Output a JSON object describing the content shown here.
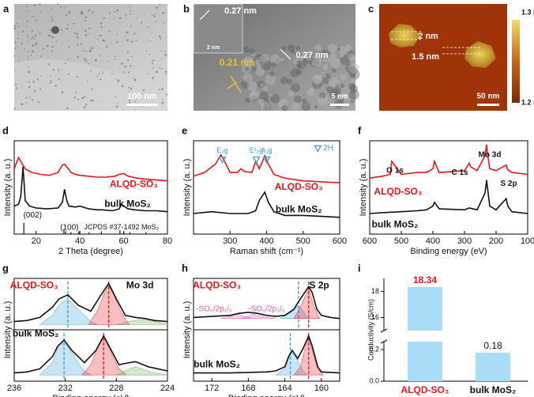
{
  "images": [
    {
      "label": "a",
      "texts": [
        "100 nm"
      ]
    },
    {
      "label": "b",
      "texts": [
        "0.27 nm",
        "2 nm",
        "0.21 nm",
        "0.27 nm",
        "5 nm"
      ]
    },
    {
      "label": "c",
      "texts": [
        "2 nm",
        "1.5 nm",
        "50 nm",
        "1.3 nm",
        "1.2 nm"
      ]
    }
  ],
  "chart_data": [
    {
      "type": "line",
      "label": "d",
      "xlabel": "2 Theta (degree)",
      "ylabel": "Intensity (a. u.)",
      "xlim": [
        10,
        80
      ],
      "xticks": [
        20,
        40,
        60,
        80
      ],
      "ylim": [
        0,
        100
      ],
      "series": [
        {
          "name": "ALQD-SO₃",
          "color": "#e8161b",
          "x": [
            10,
            12,
            13,
            15,
            18,
            22,
            26,
            30,
            32,
            33,
            34,
            36,
            38,
            40,
            44,
            48,
            52,
            56,
            58,
            60,
            62,
            66,
            70,
            75,
            80
          ],
          "values": [
            70,
            82,
            78,
            70,
            66,
            64,
            63,
            66,
            74,
            75,
            72,
            66,
            64,
            63,
            62,
            61,
            61,
            62,
            64,
            65,
            62,
            60,
            59,
            58,
            57
          ]
        },
        {
          "name": "bulk MoS₂",
          "color": "#111111",
          "x": [
            10,
            12,
            13,
            14,
            14.5,
            15,
            17,
            20,
            25,
            30,
            32,
            33,
            34,
            35,
            38,
            40,
            44,
            48,
            50,
            55,
            58,
            59,
            60,
            62,
            65,
            70,
            75,
            80
          ],
          "values": [
            30,
            32,
            40,
            72,
            55,
            36,
            30,
            28,
            27,
            28,
            34,
            48,
            36,
            30,
            29,
            30,
            27,
            26,
            26,
            25,
            27,
            32,
            30,
            27,
            26,
            25,
            25,
            24
          ]
        }
      ],
      "annotations": [
        "(002)",
        "(100)"
      ],
      "reference": {
        "label": "JCPDS #37-1492 MoS₂",
        "color": "#111111",
        "x": [
          14.4,
          32.7,
          33.5,
          35.9,
          39.5,
          44.2,
          49.8,
          58.3,
          60.1,
          62.8,
          70.1
        ],
        "values": [
          12,
          5,
          3,
          2,
          3,
          2,
          3,
          4,
          2,
          2,
          2
        ]
      }
    },
    {
      "type": "line",
      "label": "e",
      "xlabel": "Raman shift (cm⁻¹)",
      "ylabel": "Intensity (a. u.)",
      "xlim": [
        200,
        600
      ],
      "xticks": [
        300,
        400,
        500,
        600
      ],
      "ylim": [
        0,
        100
      ],
      "series": [
        {
          "name": "ALQD-SO₃",
          "color": "#e8161b",
          "x": [
            200,
            230,
            260,
            275,
            285,
            300,
            320,
            330,
            340,
            360,
            370,
            380,
            395,
            405,
            420,
            450,
            500,
            550,
            600
          ],
          "values": [
            62,
            66,
            75,
            85,
            78,
            66,
            66,
            70,
            67,
            66,
            78,
            70,
            84,
            75,
            64,
            60,
            57,
            56,
            55
          ]
        },
        {
          "name": "bulk MoS₂",
          "color": "#111111",
          "x": [
            200,
            250,
            300,
            350,
            370,
            380,
            395,
            405,
            420,
            450,
            500,
            550,
            600
          ],
          "values": [
            22,
            24,
            22,
            22,
            25,
            36,
            45,
            34,
            24,
            20,
            20,
            19,
            18
          ]
        }
      ],
      "markers": {
        "x": [
          279,
          372,
          400
        ],
        "labels": [
          "E₂g",
          "E¹₂g",
          "A₁g"
        ],
        "color": "#3aa0d8"
      },
      "legend": "2H"
    },
    {
      "type": "line",
      "label": "f",
      "xlabel": "Binding energy (eV)",
      "ylabel": "Intensity (a. u.)",
      "xlim": [
        600,
        100
      ],
      "xticks": [
        600,
        500,
        400,
        300,
        200,
        100
      ],
      "ylim": [
        0,
        100
      ],
      "series": [
        {
          "name": "ALQD-SO₃",
          "color": "#e8161b",
          "x": [
            600,
            560,
            535,
            530,
            500,
            450,
            420,
            400,
            395,
            380,
            300,
            285,
            280,
            260,
            235,
            230,
            228,
            220,
            200,
            168,
            163,
            150,
            100
          ],
          "values": [
            60,
            62,
            64,
            78,
            64,
            66,
            66,
            70,
            78,
            66,
            68,
            76,
            72,
            68,
            84,
            96,
            88,
            70,
            68,
            74,
            69,
            66,
            64
          ]
        },
        {
          "name": "bulk MoS₂",
          "color": "#111111",
          "x": [
            600,
            560,
            500,
            450,
            420,
            400,
            395,
            380,
            300,
            285,
            260,
            235,
            230,
            228,
            220,
            200,
            168,
            163,
            150,
            100
          ],
          "values": [
            22,
            23,
            24,
            25,
            26,
            30,
            34,
            27,
            26,
            28,
            26,
            44,
            58,
            52,
            30,
            26,
            38,
            30,
            24,
            22
          ]
        }
      ],
      "annotations": [
        "O 1s",
        "C 1s",
        "Mo 3d",
        "S 2p"
      ]
    },
    {
      "type": "line",
      "label": "g",
      "xlabel": "Binding energy (eV)",
      "ylabel": "Intensity (a. u.)",
      "xlim": [
        236,
        224
      ],
      "xticks": [
        236,
        232,
        228,
        224
      ],
      "ylim": [
        0,
        100
      ],
      "series": [
        {
          "color": "#3aa0d8",
          "fill": true,
          "x": [
            234,
            233,
            232.5,
            231.8,
            231,
            230,
            229.5
          ],
          "values": [
            55,
            64,
            74,
            80,
            70,
            58,
            55
          ]
        },
        {
          "color": "#e8161b",
          "fill": true,
          "x": [
            230.2,
            229.5,
            229,
            228.6,
            228.2,
            227.6,
            227
          ],
          "values": [
            55,
            68,
            84,
            93,
            84,
            66,
            55
          ]
        },
        {
          "color": "#5aaa50",
          "fill": true,
          "x": [
            228,
            227,
            226,
            225,
            224
          ],
          "values": [
            55,
            58,
            60,
            58,
            56
          ]
        },
        {
          "name": "ALQD-SO₃",
          "color": "#111111",
          "x": [
            236,
            235,
            234,
            233,
            232.5,
            231.8,
            231,
            230,
            229.3,
            228.6,
            228,
            227.3,
            226.5,
            225.8,
            225,
            224
          ],
          "values": [
            58,
            59,
            62,
            72,
            80,
            84,
            74,
            68,
            82,
            95,
            80,
            64,
            62,
            61,
            59,
            58
          ]
        },
        {
          "color": "#3aa0d8",
          "fill": true,
          "x": [
            234,
            233,
            232.6,
            232.1,
            231.5,
            230.7,
            230
          ],
          "values": [
            6,
            18,
            32,
            38,
            28,
            12,
            6
          ]
        },
        {
          "color": "#e8161b",
          "fill": true,
          "x": [
            230.7,
            230,
            229.5,
            229,
            228.5,
            227.8,
            227.2
          ],
          "values": [
            6,
            16,
            32,
            42,
            30,
            12,
            6
          ]
        },
        {
          "color": "#5aaa50",
          "fill": true,
          "x": [
            228,
            227,
            226.5,
            226,
            225,
            224
          ],
          "values": [
            6,
            12,
            14,
            12,
            8,
            6
          ]
        },
        {
          "name": "bulk MoS₂",
          "color": "#111111",
          "x": [
            236,
            235,
            234,
            233,
            232.6,
            232.1,
            231.5,
            230.5,
            229.6,
            229,
            228.4,
            227.8,
            227,
            226.5,
            225.5,
            224
          ],
          "values": [
            8,
            9,
            12,
            24,
            34,
            40,
            30,
            18,
            30,
            44,
            30,
            16,
            18,
            19,
            14,
            10
          ]
        }
      ],
      "reference_lines": {
        "x": [
          231.8,
          228.6,
          232.1,
          229.0
        ],
        "colors": [
          "#3aa0d8",
          "#e8161b",
          "#3aa0d8",
          "#e8161b"
        ]
      },
      "annotations": [
        "Mo 3d"
      ]
    },
    {
      "type": "line",
      "label": "h",
      "xlabel": "Binding energy (eV)",
      "ylabel": "Intensity (a. u.)",
      "xlim": [
        174,
        158
      ],
      "xticks": [
        172,
        168,
        164,
        160
      ],
      "ylim": [
        0,
        100
      ],
      "series": [
        {
          "color": "#d85bb5",
          "fill": true,
          "x": [
            171,
            170,
            169.2,
            168.4,
            167.6
          ],
          "values": [
            61,
            63,
            66,
            63,
            61
          ]
        },
        {
          "color": "#d85bb5",
          "fill": true,
          "x": [
            168.8,
            168,
            167.5,
            167,
            166,
            165
          ],
          "values": [
            61,
            63,
            65,
            64,
            62,
            61
          ]
        },
        {
          "color": "#3aa0d8",
          "fill": true,
          "x": [
            164.5,
            163.5,
            162.8,
            162.4,
            162,
            161.5
          ],
          "values": [
            61,
            66,
            72,
            73,
            68,
            61
          ]
        },
        {
          "color": "#e8161b",
          "fill": true,
          "x": [
            163,
            162.2,
            161.4,
            160.8,
            160.2
          ],
          "values": [
            61,
            74,
            90,
            72,
            61
          ]
        },
        {
          "name": "ALQD-SO₃",
          "color": "#111111",
          "x": [
            174,
            172,
            170,
            169,
            168,
            167,
            166,
            165,
            164,
            163,
            162.6,
            162,
            161.4,
            161,
            160.5,
            160,
            159,
            158
          ],
          "values": [
            62,
            63,
            64,
            66,
            67,
            66,
            64,
            63,
            64,
            70,
            76,
            84,
            92,
            86,
            70,
            64,
            62,
            61
          ]
        },
        {
          "color": "#3aa0d8",
          "fill": true,
          "x": [
            165,
            164,
            163.6,
            163.2,
            162.6,
            162,
            161.6
          ],
          "values": [
            6,
            12,
            22,
            28,
            20,
            10,
            6
          ]
        },
        {
          "color": "#e8161b",
          "fill": true,
          "x": [
            163,
            162.3,
            161.8,
            161.4,
            161,
            160.4,
            159.8
          ],
          "values": [
            6,
            14,
            32,
            42,
            30,
            12,
            6
          ]
        },
        {
          "name": "bulk MoS₂",
          "color": "#111111",
          "x": [
            174,
            170,
            166,
            165,
            164,
            163.6,
            163.2,
            162.6,
            162,
            161.4,
            161,
            160.4,
            160,
            158
          ],
          "values": [
            8,
            8,
            9,
            10,
            14,
            24,
            30,
            22,
            32,
            44,
            34,
            14,
            9,
            8
          ]
        }
      ],
      "reference_lines": {
        "x": [
          162.5,
          161.4,
          163.4,
          161.4
        ],
        "colors": [
          "#3aa0d8",
          "#e8161b",
          "#3aa0d8",
          "#e8161b"
        ]
      },
      "annotations": [
        "S 2p",
        "-SO₃/2p₁/₂",
        "-SO₃/2p₃/₂"
      ]
    },
    {
      "type": "bar",
      "label": "i",
      "ylabel": "Conductivity (S/cm)",
      "categories": [
        "ALQD-SO₃",
        "bulk MoS₂"
      ],
      "category_colors": [
        "#e8161b",
        "#111111"
      ],
      "values": [
        18.34,
        0.18
      ],
      "value_colors": [
        "#e8161b",
        "#111111"
      ],
      "color": "#a9dcf7",
      "ylim_segments": [
        [
          0,
          0.25
        ],
        [
          15,
          19
        ]
      ],
      "yticks": [
        {
          "value": 0,
          "label": "0.0"
        },
        0.2,
        16,
        18
      ]
    }
  ]
}
